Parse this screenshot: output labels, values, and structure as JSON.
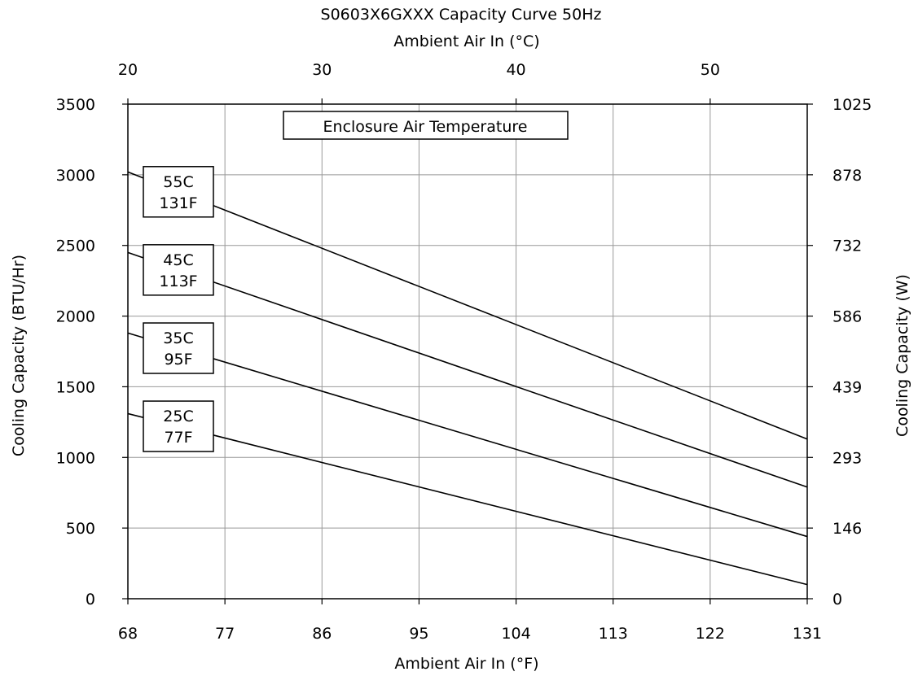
{
  "chart_data": {
    "type": "line",
    "title": "S0603X6GXXX Capacity Curve 50Hz",
    "xlabel": "Ambient Air In (°F)",
    "x2label": "Ambient Air In (°C)",
    "ylabel": "Cooling Capacity (BTU/Hr)",
    "y2label": "Cooling Capacity (W)",
    "xlim": [
      68,
      131
    ],
    "ylim": [
      0,
      3500
    ],
    "xticks": [
      "68",
      "77",
      "86",
      "95",
      "104",
      "113",
      "122",
      "131"
    ],
    "x2ticks": [
      "20",
      "30",
      "40",
      "50"
    ],
    "yticks": [
      "0",
      "500",
      "1000",
      "1500",
      "2000",
      "2500",
      "3000",
      "3500"
    ],
    "y2ticks": [
      "0",
      "146",
      "293",
      "439",
      "586",
      "732",
      "878",
      "1025"
    ],
    "grid": true,
    "annotation": "Enclosure Air Temperature",
    "series": [
      {
        "name": "55C 131F",
        "label_c": "55C",
        "label_f": "131F",
        "x": [
          68,
          131
        ],
        "y": [
          3020,
          1130
        ]
      },
      {
        "name": "45C 113F",
        "label_c": "45C",
        "label_f": "113F",
        "x": [
          68,
          131
        ],
        "y": [
          2450,
          790
        ]
      },
      {
        "name": "35C 95F",
        "label_c": "35C",
        "label_f": "95F",
        "x": [
          68,
          131
        ],
        "y": [
          1880,
          440
        ]
      },
      {
        "name": "25C 77F",
        "label_c": "25C",
        "label_f": "77F",
        "x": [
          68,
          131
        ],
        "y": [
          1310,
          100
        ]
      }
    ]
  }
}
